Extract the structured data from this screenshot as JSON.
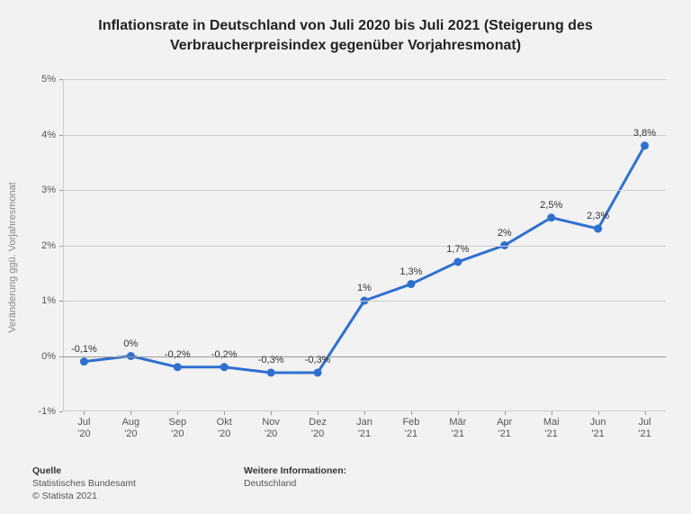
{
  "title_line1": "Inflationsrate in Deutschland von Juli 2020 bis Juli 2021 (Steigerung des",
  "title_line2": "Verbraucherpreisindex gegenüber Vorjahresmonat)",
  "chart": {
    "type": "line",
    "y_axis_title": "Veränderung ggü. Vorjahresmonat",
    "ylim": [
      -1,
      5
    ],
    "yticks": [
      -1,
      0,
      1,
      2,
      3,
      4,
      5
    ],
    "ytick_labels": [
      "-1%",
      "0%",
      "1%",
      "2%",
      "3%",
      "4%",
      "5%"
    ],
    "zero_line_at": 0,
    "categories": [
      "Jul\n'20",
      "Aug\n'20",
      "Sep\n'20",
      "Okt\n'20",
      "Nov\n'20",
      "Dez\n'20",
      "Jan\n'21",
      "Feb\n'21",
      "Mär\n'21",
      "Apr\n'21",
      "Mai\n'21",
      "Jun\n'21",
      "Jul\n'21"
    ],
    "values": [
      -0.1,
      0.0,
      -0.2,
      -0.2,
      -0.3,
      -0.3,
      1.0,
      1.3,
      1.7,
      2.0,
      2.5,
      2.3,
      3.8
    ],
    "value_labels": [
      "-0,1%",
      "0%",
      "-0,2%",
      "-0,2%",
      "-0,3%",
      "-0,3%",
      "1%",
      "1,3%",
      "1,7%",
      "2%",
      "2,5%",
      "2,3%",
      "3,8%"
    ],
    "line_color": "#2f6fd0",
    "line_width": 3,
    "marker_radius": 4.5,
    "marker_fill": "#2f6fd0",
    "grid_color": "#cccccc",
    "axis_color": "#999999",
    "zero_line_color": "#999999",
    "background_color": "#f2f2f2",
    "label_fontsize": 11,
    "tick_fontsize": 11
  },
  "footer": {
    "source_heading": "Quelle",
    "source_line": "Statistisches Bundesamt",
    "copyright_line": "© Statista 2021",
    "more_heading": "Weitere Informationen:",
    "more_line": "Deutschland"
  }
}
